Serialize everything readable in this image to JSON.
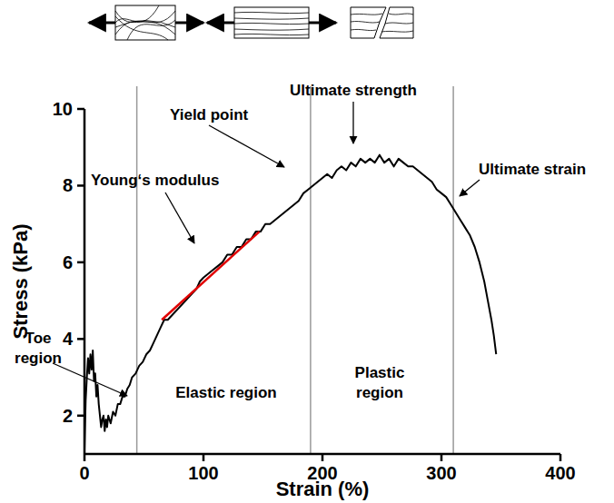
{
  "chart_data": {
    "type": "line",
    "x_label": "Strain (%)",
    "y_label": "Stress (kPa)",
    "xlim": [
      0,
      400
    ],
    "ylim": [
      1,
      10
    ],
    "xticks": [
      0,
      100,
      200,
      300,
      400
    ],
    "yticks": [
      2,
      4,
      6,
      8,
      10
    ],
    "color": "#000000",
    "x": [
      0,
      1,
      2,
      3,
      4,
      5,
      6,
      7,
      8,
      9,
      10,
      11,
      12,
      13,
      14,
      15,
      16,
      17,
      18,
      19,
      20,
      22,
      24,
      26,
      28,
      30,
      32,
      34,
      36,
      38,
      40,
      43,
      46,
      49,
      52,
      55,
      58,
      61,
      64,
      67,
      70,
      73,
      76,
      79,
      82,
      85,
      88,
      91,
      94,
      97,
      100,
      104,
      108,
      112,
      116,
      120,
      124,
      128,
      132,
      136,
      140,
      144,
      148,
      152,
      156,
      160,
      164,
      168,
      172,
      176,
      180,
      184,
      188,
      192,
      196,
      200,
      204,
      208,
      212,
      216,
      220,
      224,
      228,
      232,
      236,
      240,
      244,
      248,
      252,
      256,
      260,
      264,
      268,
      272,
      276,
      280,
      284,
      288,
      292,
      296,
      300,
      304,
      308,
      312,
      316,
      320,
      324,
      328,
      332,
      336,
      339,
      342,
      344,
      346
    ],
    "values": [
      1.1,
      2.4,
      3.0,
      3.5,
      3.1,
      3.6,
      3.2,
      3.7,
      2.9,
      3.1,
      2.5,
      2.8,
      2.3,
      2.0,
      1.7,
      1.9,
      2.0,
      1.6,
      1.9,
      1.7,
      2.0,
      1.8,
      2.1,
      2.0,
      2.3,
      2.3,
      2.5,
      2.5,
      2.7,
      2.8,
      3.0,
      3.1,
      3.3,
      3.4,
      3.6,
      3.7,
      3.9,
      4.1,
      4.3,
      4.5,
      4.5,
      4.6,
      4.7,
      4.8,
      4.9,
      5.0,
      5.1,
      5.2,
      5.3,
      5.5,
      5.6,
      5.7,
      5.8,
      5.9,
      6.0,
      6.2,
      6.2,
      6.4,
      6.4,
      6.6,
      6.6,
      6.8,
      6.8,
      7.0,
      7.0,
      7.1,
      7.2,
      7.3,
      7.4,
      7.5,
      7.6,
      7.8,
      7.9,
      8.0,
      8.1,
      8.2,
      8.3,
      8.2,
      8.4,
      8.5,
      8.4,
      8.6,
      8.5,
      8.7,
      8.6,
      8.7,
      8.6,
      8.8,
      8.6,
      8.7,
      8.5,
      8.7,
      8.6,
      8.5,
      8.5,
      8.4,
      8.3,
      8.2,
      8.1,
      7.9,
      7.8,
      7.7,
      7.5,
      7.3,
      7.1,
      6.9,
      6.7,
      6.4,
      6.0,
      5.5,
      5.0,
      4.5,
      4.1,
      3.6
    ],
    "fit_line": {
      "x": [
        65,
        147
      ],
      "values": [
        4.5,
        6.8
      ],
      "color": "#e00000"
    },
    "region_bounds": [
      44,
      190,
      310
    ],
    "annotations": [
      "Toe region",
      "Young‘s modulus",
      "Yield point",
      "Ultimate strength",
      "Ultimate strain",
      "Elastic region",
      "Plastic region"
    ]
  }
}
